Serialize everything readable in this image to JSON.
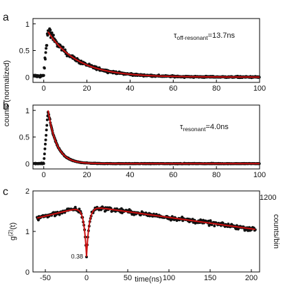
{
  "chart_data": [
    {
      "type": "scatter",
      "panel_label": "a",
      "annotation": {
        "prefix": "τ",
        "sub": "off-resonant",
        "suffix": "=13.7ns"
      },
      "xlim": [
        -5,
        100
      ],
      "ylim": [
        -0.1,
        1.1
      ],
      "xticks": [
        0,
        20,
        40,
        60,
        80,
        100
      ],
      "yticks": [
        0,
        0.5,
        1
      ],
      "ytick_labels": [
        "0",
        "0.5",
        "1"
      ],
      "series": [
        {
          "kind": "data",
          "color": "#111111"
        },
        {
          "kind": "fit",
          "color": "#cc1111"
        }
      ],
      "data_model": {
        "baseline": [
          -5,
          0,
          0.02
        ],
        "rise": [
          0,
          2,
          0.85
        ],
        "decay_tau_ns": 13.7,
        "noise": 0.05
      },
      "points": []
    },
    {
      "type": "scatter",
      "panel_label": "b",
      "annotation": {
        "prefix": "τ",
        "sub": "resonant",
        "suffix": "=4.0ns"
      },
      "xlim": [
        -5,
        100
      ],
      "ylim": [
        -0.1,
        1.1
      ],
      "xticks": [
        0,
        20,
        40,
        60,
        80,
        100
      ],
      "yticks": [
        0,
        0.5,
        1
      ],
      "ytick_labels": [
        "0",
        "0.5",
        "1"
      ],
      "series": [
        {
          "kind": "data",
          "color": "#111111"
        },
        {
          "kind": "fit",
          "color": "#cc1111"
        }
      ],
      "data_model": {
        "baseline": [
          -5,
          0,
          0.0
        ],
        "rise": [
          0,
          2,
          1.0
        ],
        "decay_tau_ns": 4.0,
        "noise": 0.02
      },
      "points": []
    },
    {
      "type": "scatter",
      "panel_label": "c",
      "xlabel": "time(ns)",
      "ylabel_left": {
        "base": "g",
        "sup": "(2)",
        "rest": "(t)"
      },
      "ylabel_right": "counts/bin",
      "right_axis_max_label": "1200",
      "xlim": [
        -65,
        210
      ],
      "ylim": [
        0,
        2
      ],
      "xticks": [
        -50,
        0,
        50,
        100,
        150,
        200
      ],
      "yticks": [
        0,
        1,
        2
      ],
      "ytick_labels": [
        "0",
        "1",
        "2"
      ],
      "min_label": "0.38",
      "min_value": 0.38,
      "series": [
        {
          "kind": "data",
          "color": "#111111"
        },
        {
          "kind": "fit",
          "color": "#cc1111"
        }
      ],
      "data_model": {
        "envelope": [
          [
            -60,
            1.33
          ],
          [
            -5,
            1.6
          ],
          [
            10,
            1.6
          ],
          [
            205,
            1.05
          ]
        ],
        "dip_center": 0,
        "dip_min": 0.38,
        "noise": 0.05
      },
      "points": []
    }
  ],
  "shared_ylabel": "counts (normalized)"
}
